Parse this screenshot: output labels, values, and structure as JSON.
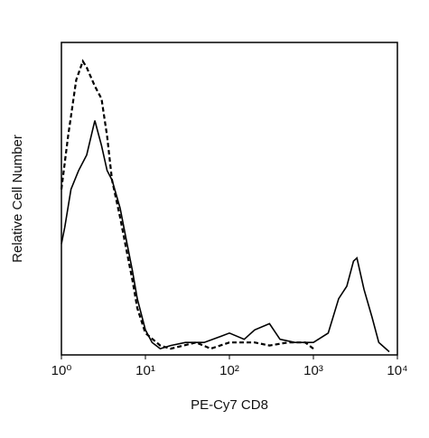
{
  "chart_data": {
    "type": "line",
    "x_label": "PE-Cy7 CD8",
    "y_label": "Relative Cell Number",
    "xscale": "log",
    "xlim": [
      1,
      10000
    ],
    "ylim": [
      0,
      100
    ],
    "xticks": [
      {
        "value": 1,
        "label": "10⁰"
      },
      {
        "value": 10,
        "label": "10¹"
      },
      {
        "value": 100,
        "label": "10²"
      },
      {
        "value": 1000,
        "label": "10³"
      },
      {
        "value": 10000,
        "label": "10⁴"
      }
    ],
    "series": [
      {
        "color": "#000000",
        "dash": false,
        "x": [
          1,
          1.1,
          1.3,
          1.6,
          2,
          2.5,
          3,
          3.5,
          4,
          5,
          6,
          7,
          8,
          10,
          12,
          15,
          20,
          30,
          50,
          80,
          100,
          150,
          200,
          300,
          400,
          600,
          1000,
          1500,
          2000,
          2500,
          3000,
          3300,
          4000,
          5000,
          6000,
          8000
        ],
        "values": [
          35.5,
          41,
          53,
          59,
          64,
          75,
          67,
          59,
          56,
          47,
          36,
          27,
          18,
          8,
          4,
          2,
          3,
          4,
          4,
          6,
          7,
          5,
          8,
          10,
          5,
          4,
          4,
          7,
          18,
          22,
          30,
          31,
          21,
          12,
          4,
          1
        ]
      },
      {
        "color": "#000000",
        "dash": true,
        "x": [
          1,
          1.2,
          1.5,
          1.8,
          2,
          2.5,
          3,
          3.5,
          4,
          5,
          6,
          7,
          8,
          10,
          15,
          20,
          40,
          60,
          100,
          200,
          300,
          500,
          800,
          1000
        ],
        "values": [
          53,
          70,
          88,
          94,
          92,
          86,
          82,
          70,
          56,
          44,
          33,
          24,
          15,
          7,
          3,
          2,
          4,
          2,
          4,
          4,
          3,
          4,
          4,
          2
        ]
      }
    ]
  }
}
